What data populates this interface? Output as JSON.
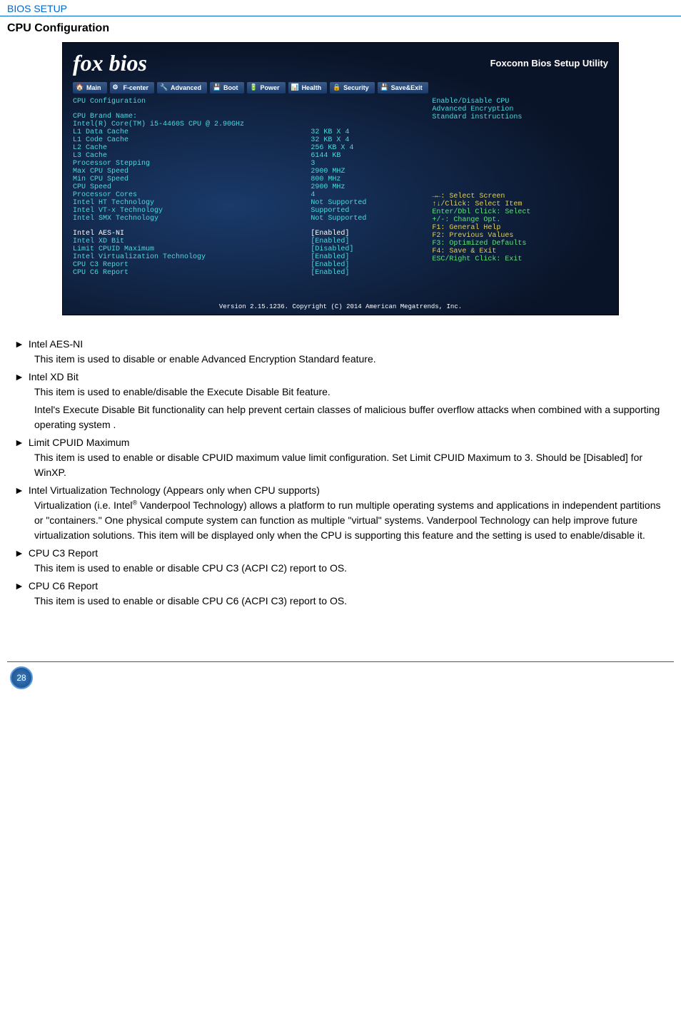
{
  "header": {
    "section": "BIOS SETUP",
    "title": "CPU Configuration"
  },
  "bios": {
    "brand": "fox bios",
    "utility": "Foxconn Bios Setup Utility",
    "tabs": [
      "Main",
      "F-center",
      "Advanced",
      "Boot",
      "Power",
      "Health",
      "Security",
      "Save&Exit"
    ],
    "cfg_title": "CPU Configuration",
    "brand_label": "CPU Brand Name:",
    "brand_value": "Intel(R) Core(TM) i5-4460S CPU @ 2.90GHz",
    "rows": [
      {
        "label": "L1 Data Cache",
        "value": "32 KB X 4"
      },
      {
        "label": "L1 Code Cache",
        "value": "32 KB X 4"
      },
      {
        "label": "L2 Cache",
        "value": "256 KB X 4"
      },
      {
        "label": "L3 Cache",
        "value": "6144 KB"
      },
      {
        "label": "Processor Stepping",
        "value": "3"
      },
      {
        "label": "Max CPU Speed",
        "value": "2900 MHZ"
      },
      {
        "label": "Min CPU Speed",
        "value": "800 MHz"
      },
      {
        "label": "CPU Speed",
        "value": "2900 MHz"
      },
      {
        "label": "Processor Cores",
        "value": "4"
      },
      {
        "label": "Intel HT Technology",
        "value": "Not Supported"
      },
      {
        "label": "Intel VT-x Technology",
        "value": "Supported"
      },
      {
        "label": "Intel SMX Technology",
        "value": "Not Supported"
      }
    ],
    "options": [
      {
        "label": "Intel AES-NI",
        "value": "[Enabled]",
        "sel": true
      },
      {
        "label": "Intel XD Bit",
        "value": "[Enabled]"
      },
      {
        "label": "Limit CPUID Maximum",
        "value": "[Disabled]"
      },
      {
        "label": "Intel Virtualization Technology",
        "value": "[Enabled]"
      },
      {
        "label": "CPU C3 Report",
        "value": "[Enabled]"
      },
      {
        "label": "CPU C6 Report",
        "value": "[Enabled]"
      }
    ],
    "help_title1": "Enable/Disable CPU",
    "help_title2": "Advanced Encryption",
    "help_title3": "Standard instructions",
    "keys": [
      {
        "text": "→←: Select Screen",
        "cls": "yellow"
      },
      {
        "text": "↑↓/Click: Select Item",
        "cls": "yellow"
      },
      {
        "text": "Enter/Dbl Click: Select",
        "cls": "green"
      },
      {
        "text": "+/-: Change Opt.",
        "cls": "green"
      },
      {
        "text": "F1: General Help",
        "cls": "yellow"
      },
      {
        "text": "F2: Previous Values",
        "cls": "yellow"
      },
      {
        "text": "F3: Optimized Defaults",
        "cls": "green"
      },
      {
        "text": "F4: Save & Exit",
        "cls": "yellow"
      },
      {
        "text": "ESC/Right Click: Exit",
        "cls": "green"
      }
    ],
    "copyright": "Version 2.15.1236. Copyright (C) 2014 American Megatrends, Inc."
  },
  "doc": {
    "items": [
      {
        "head": "Intel AES-NI",
        "desc": [
          "This item is used to disable or enable Advanced Encryption Standard feature."
        ]
      },
      {
        "head": "Intel XD Bit",
        "desc": [
          "This item is used to enable/disable the Execute Disable Bit feature.",
          "Intel's Execute Disable Bit functionality can help prevent certain classes of malicious buffer overflow attacks when combined with a supporting operating system ."
        ]
      },
      {
        "head": "Limit CPUID Maximum",
        "desc": [
          "This item is used to enable or disable CPUID maximum value limit configuration. Set Limit CPUID Maximum to 3. Should be [Disabled] for WinXP."
        ]
      },
      {
        "head": "Intel Virtualization Technology (Appears only when CPU supports)",
        "desc": [
          "Virtualization (i.e. Intel<sup>®</sup> Vanderpool Technology) allows a platform to run multiple operating systems and applications in independent partitions or \"containers.\" One physical compute system can function as multiple \"virtual\" systems. Vanderpool Technology can help improve future virtualization solutions. This item will be displayed only when the CPU is supporting this feature and the setting is used to enable/disable it."
        ]
      },
      {
        "head": "CPU C3 Report",
        "desc": [
          "This item is used to enable or disable CPU C3 (ACPI C2) report to OS."
        ]
      },
      {
        "head": "CPU C6 Report",
        "desc": [
          "This item is used to enable or disable CPU C6 (ACPI C3) report to OS."
        ]
      }
    ]
  },
  "page": "28"
}
